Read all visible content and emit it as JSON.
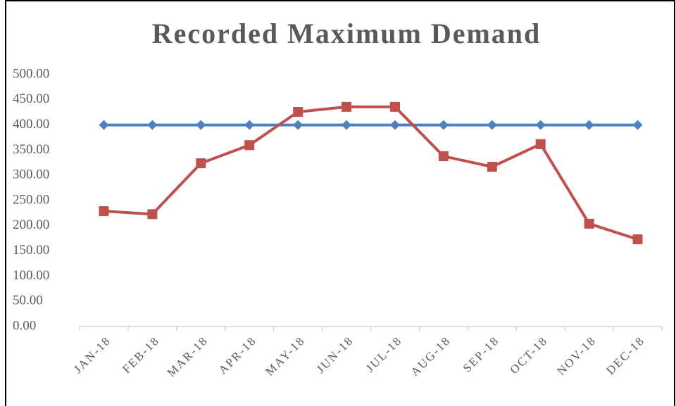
{
  "chart_data": {
    "type": "line",
    "title": "Recorded Maximum Demand",
    "categories": [
      "JAN-18",
      "FEB-18",
      "MAR-18",
      "APR-18",
      "MAY-18",
      "JUN-18",
      "JUL-18",
      "AUG-18",
      "SEP-18",
      "OCT-18",
      "NOV-18",
      "DEC-18"
    ],
    "series": [
      {
        "color": "#4f81bd",
        "marker": "diamond",
        "values": [
          400,
          400,
          400,
          400,
          400,
          400,
          400,
          400,
          400,
          400,
          400,
          400
        ]
      },
      {
        "color": "#c0504d",
        "marker": "square",
        "values": [
          229,
          223,
          324,
          360,
          426,
          436,
          436,
          338,
          317,
          362,
          204,
          173
        ]
      }
    ],
    "ylim": [
      0,
      500
    ],
    "yticks": [
      {
        "value": 0,
        "label": "0.00"
      },
      {
        "value": 50,
        "label": "50.00"
      },
      {
        "value": 100,
        "label": "100.00"
      },
      {
        "value": 150,
        "label": "150.00"
      },
      {
        "value": 200,
        "label": "200.00"
      },
      {
        "value": 250,
        "label": "250.00"
      },
      {
        "value": 300,
        "label": "300.00"
      },
      {
        "value": 350,
        "label": "350.00"
      },
      {
        "value": 400,
        "label": "400.00"
      },
      {
        "value": 450,
        "label": "450.00"
      },
      {
        "value": 500,
        "label": "500.00"
      }
    ],
    "grid": false
  }
}
